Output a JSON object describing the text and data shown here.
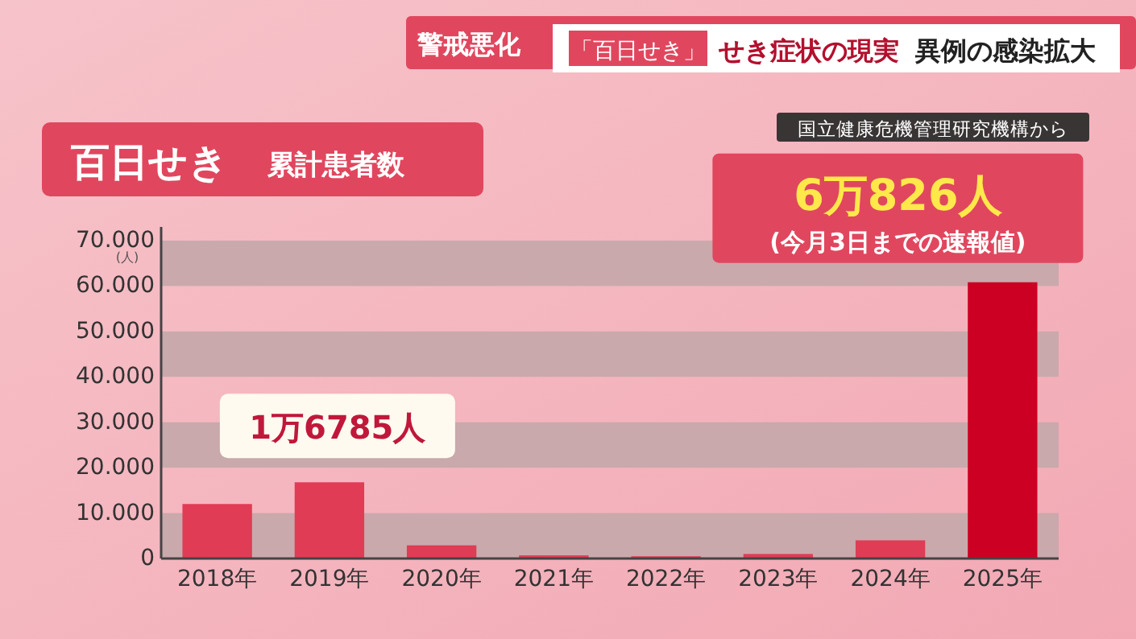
{
  "chart_data": {
    "type": "bar",
    "title": "百日せき",
    "subtitle": "累計患者数",
    "ylabel": "(人)",
    "categories": [
      "2018年",
      "2019年",
      "2020年",
      "2021年",
      "2022年",
      "2023年",
      "2024年",
      "2025年"
    ],
    "values": [
      12000,
      16785,
      2900,
      700,
      500,
      1000,
      4000,
      60826
    ],
    "colors": [
      "#e03c55",
      "#e03c55",
      "#e03c55",
      "#e03c55",
      "#e03c55",
      "#e03c55",
      "#e03c55",
      "#cc0022"
    ],
    "ylim": [
      0,
      73000
    ],
    "yticks": [
      0,
      {
        "value": 10000,
        "label": "10.000"
      },
      {
        "value": 20000,
        "label": "20.000"
      },
      {
        "value": 30000,
        "label": "30.000"
      },
      {
        "value": 40000,
        "label": "40.000"
      },
      {
        "value": 50000,
        "label": "50.000"
      },
      {
        "value": 60000,
        "label": "60.000"
      },
      {
        "value": 70000,
        "label": "70.000"
      }
    ],
    "annotations": [
      "警戒悪化",
      "「百日せき」",
      "せき症状の現実",
      "異例の感染拡大",
      "国立健康危機管理研究機構から",
      {
        "text": "1万6785人",
        "x": "2019年",
        "y": 16785
      },
      {
        "text": "6万826人",
        "x": "2025年",
        "y": 60826
      },
      "(今月3日までの速報値)"
    ]
  }
}
